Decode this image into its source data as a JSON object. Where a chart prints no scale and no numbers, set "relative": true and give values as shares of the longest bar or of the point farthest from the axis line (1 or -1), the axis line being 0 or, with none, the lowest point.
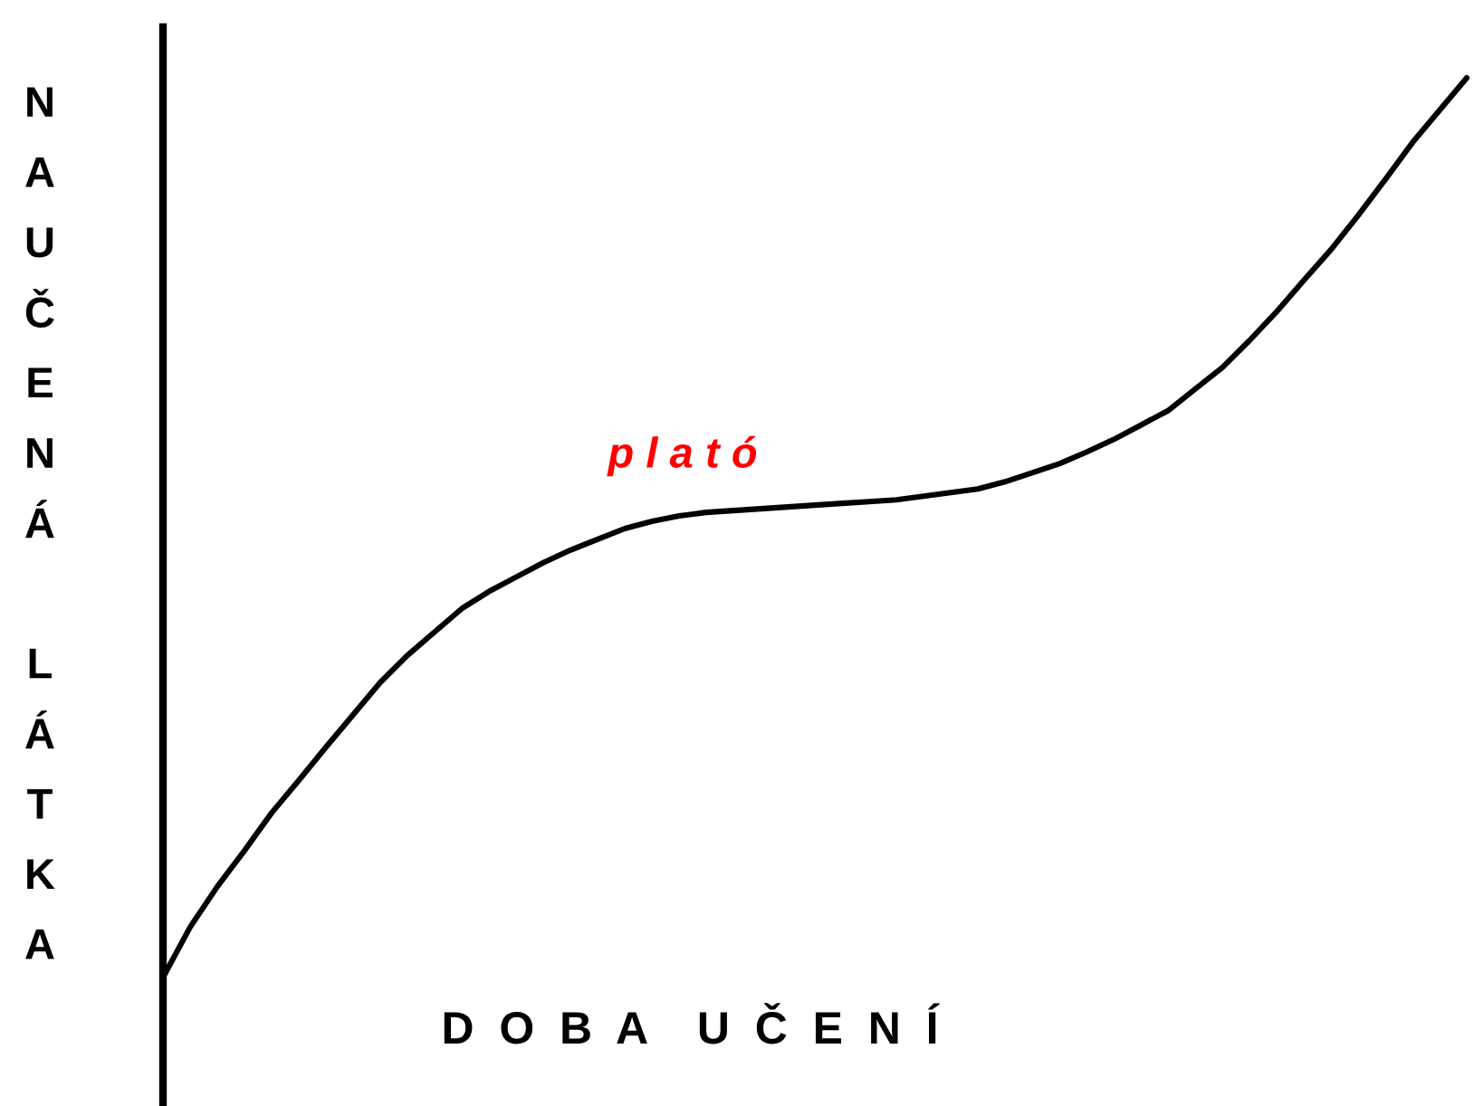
{
  "chart_data": {
    "type": "line",
    "relative": true,
    "xlabel": "D O B A  U Č E N Í",
    "ylabel": "NAUČENÁ LÁTKA",
    "annotations": [
      "p l a t ó"
    ],
    "categories": [
      null,
      null,
      null,
      null,
      null,
      null,
      null,
      null,
      null,
      null,
      null,
      null,
      null,
      null,
      null,
      null,
      null,
      null,
      null,
      null,
      null,
      null,
      null,
      null,
      null,
      null,
      null,
      null,
      null,
      null,
      null,
      null,
      null,
      null,
      null,
      null,
      null,
      null,
      null,
      null,
      null,
      null,
      null,
      null,
      null,
      null,
      null,
      null,
      null
    ],
    "series": [
      {
        "color": "#000000",
        "values": [
          0,
          0.056,
          0.101,
          0.141,
          0.183,
          0.219,
          0.256,
          0.292,
          0.328,
          0.358,
          0.384,
          0.41,
          0.429,
          0.445,
          0.461,
          0.475,
          0.487,
          0.499,
          0.507,
          0.513,
          0.517,
          0.519,
          0.521,
          0.523,
          0.525,
          0.527,
          0.529,
          0.531,
          0.535,
          0.539,
          0.543,
          0.551,
          0.561,
          0.571,
          0.584,
          0.598,
          0.614,
          0.63,
          0.654,
          0.678,
          0.708,
          0.74,
          0.775,
          0.809,
          0.847,
          0.887,
          0.928,
          0.964,
          1
        ]
      }
    ]
  }
}
